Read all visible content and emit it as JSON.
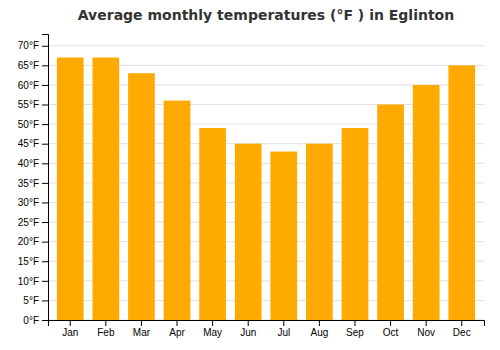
{
  "chart_data": {
    "type": "bar",
    "title": "Average monthly temperatures (°F ) in Eglinton",
    "categories": [
      "Jan",
      "Feb",
      "Mar",
      "Apr",
      "May",
      "Jun",
      "Jul",
      "Aug",
      "Sep",
      "Oct",
      "Nov",
      "Dec"
    ],
    "values": [
      67,
      67,
      63,
      56,
      49,
      45,
      43,
      45,
      49,
      55,
      60,
      65
    ],
    "color": "#FFAA00",
    "ylim": [
      0,
      73
    ],
    "yticks": [
      {
        "value": 0,
        "label": "0°F"
      },
      {
        "value": 5,
        "label": "5°F"
      },
      {
        "value": 10,
        "label": "10°F"
      },
      {
        "value": 15,
        "label": "15°F"
      },
      {
        "value": 20,
        "label": "20°F"
      },
      {
        "value": 25,
        "label": "25°F"
      },
      {
        "value": 30,
        "label": "30°F"
      },
      {
        "value": 35,
        "label": "35°F"
      },
      {
        "value": 40,
        "label": "40°F"
      },
      {
        "value": 45,
        "label": "45°F"
      },
      {
        "value": 50,
        "label": "50°F"
      },
      {
        "value": 55,
        "label": "55°F"
      },
      {
        "value": 60,
        "label": "60°F"
      },
      {
        "value": 65,
        "label": "65°F"
      },
      {
        "value": 70,
        "label": "70°F"
      }
    ],
    "grid": true
  }
}
